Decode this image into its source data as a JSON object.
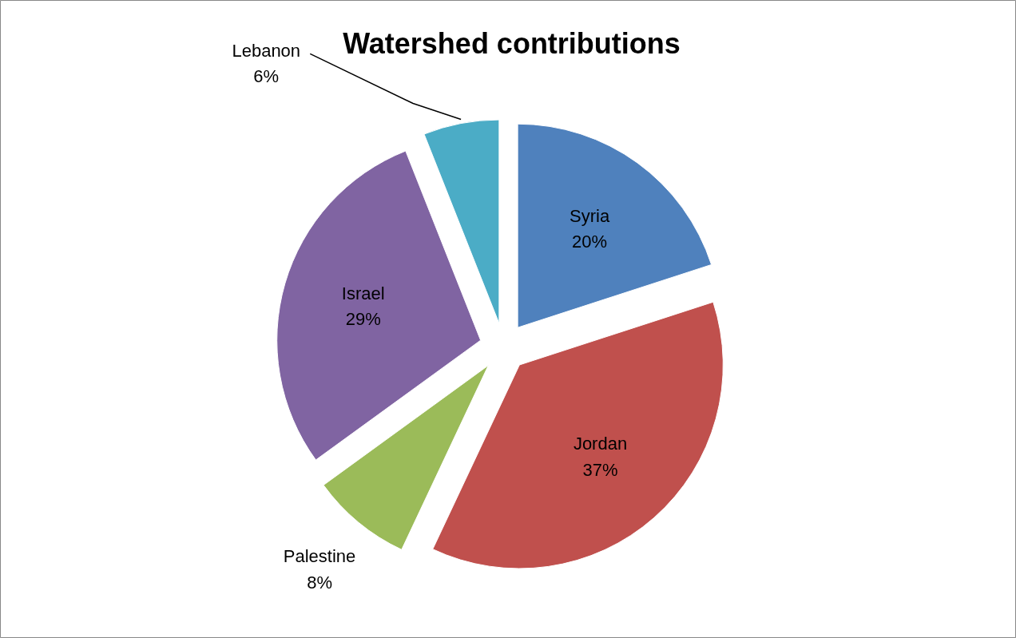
{
  "chart_data": {
    "type": "pie",
    "title": "Watershed contributions",
    "categories": [
      "Syria",
      "Jordan",
      "Palestine",
      "Israel",
      "Lebanon"
    ],
    "values": [
      20,
      37,
      8,
      29,
      6
    ],
    "colors": [
      "#4f81bd",
      "#c0504d",
      "#9bbb59",
      "#8064a2",
      "#4bacc6"
    ],
    "value_labels": [
      "20%",
      "37%",
      "8%",
      "29%",
      "6%"
    ]
  }
}
